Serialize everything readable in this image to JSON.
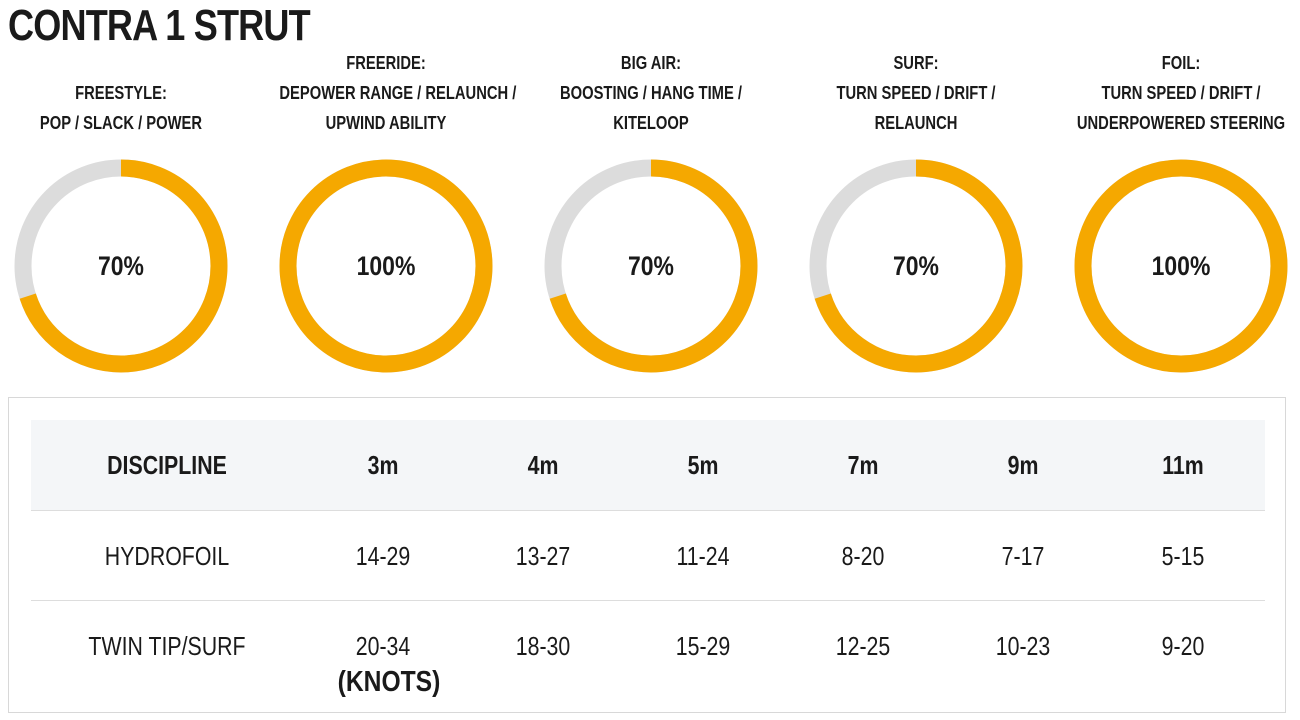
{
  "title": "CONTRA 1 STRUT",
  "accent_color": "#f5a800",
  "track_color": "#dcdcdc",
  "disciplines": [
    {
      "label_lines": [
        "FREESTYLE:",
        "POP / SLACK / POWER"
      ],
      "value_text": "70%",
      "value": 70
    },
    {
      "label_lines": [
        "FREERIDE:",
        "DEPOWER RANGE / RELAUNCH /",
        "UPWIND ABILITY"
      ],
      "value_text": "100%",
      "value": 100
    },
    {
      "label_lines": [
        "BIG AIR:",
        "BOOSTING / HANG TIME /",
        "KITELOOP"
      ],
      "value_text": "70%",
      "value": 70
    },
    {
      "label_lines": [
        "SURF:",
        "TURN SPEED / DRIFT /",
        "RELAUNCH"
      ],
      "value_text": "70%",
      "value": 70
    },
    {
      "label_lines": [
        "FOIL:",
        "TURN SPEED / DRIFT /",
        "UNDERPOWERED STEERING"
      ],
      "value_text": "100%",
      "value": 100
    }
  ],
  "wind_table": {
    "header": [
      "DISCIPLINE",
      "3m",
      "4m",
      "5m",
      "7m",
      "9m",
      "11m"
    ],
    "rows": [
      [
        "HYDROFOIL",
        "14-29",
        "13-27",
        "11-24",
        "8-20",
        "7-17",
        "5-15"
      ],
      [
        "TWIN TIP/SURF",
        "20-34",
        "18-30",
        "15-29",
        "12-25",
        "10-23",
        "9-20"
      ]
    ],
    "unit_note": "(KNOTS)"
  }
}
